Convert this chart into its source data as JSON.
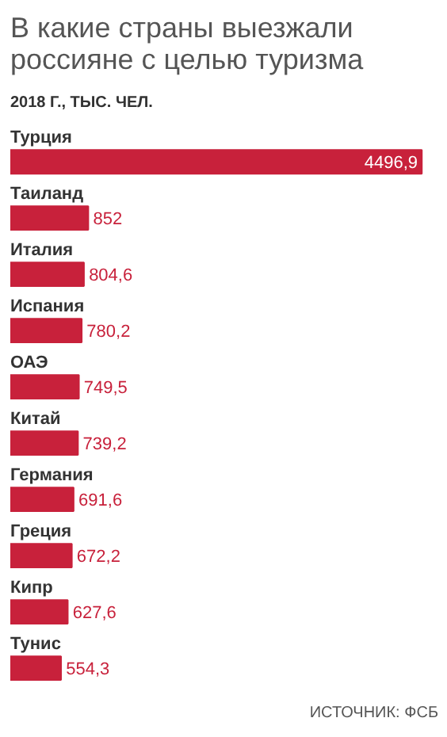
{
  "chart_data": {
    "type": "bar",
    "orientation": "horizontal",
    "title": "В какие страны выезжали россияне с целью туризма",
    "subtitle": "2018 Г., ТЫС. ЧЕЛ.",
    "categories": [
      "Турция",
      "Таиланд",
      "Италия",
      "Испания",
      "ОАЭ",
      "Китай",
      "Германия",
      "Греция",
      "Кипр",
      "Тунис"
    ],
    "values": [
      4496.9,
      852,
      804.6,
      780.2,
      749.5,
      739.2,
      691.6,
      672.2,
      627.6,
      554.3
    ],
    "value_labels": [
      "4496,9",
      "852",
      "804,6",
      "780,2",
      "749,5",
      "739,2",
      "691,6",
      "672,2",
      "627,6",
      "554,3"
    ],
    "color": "#c8213b",
    "grid": false,
    "annotations": [
      "ИСТОЧНИК: ФСБ"
    ]
  }
}
